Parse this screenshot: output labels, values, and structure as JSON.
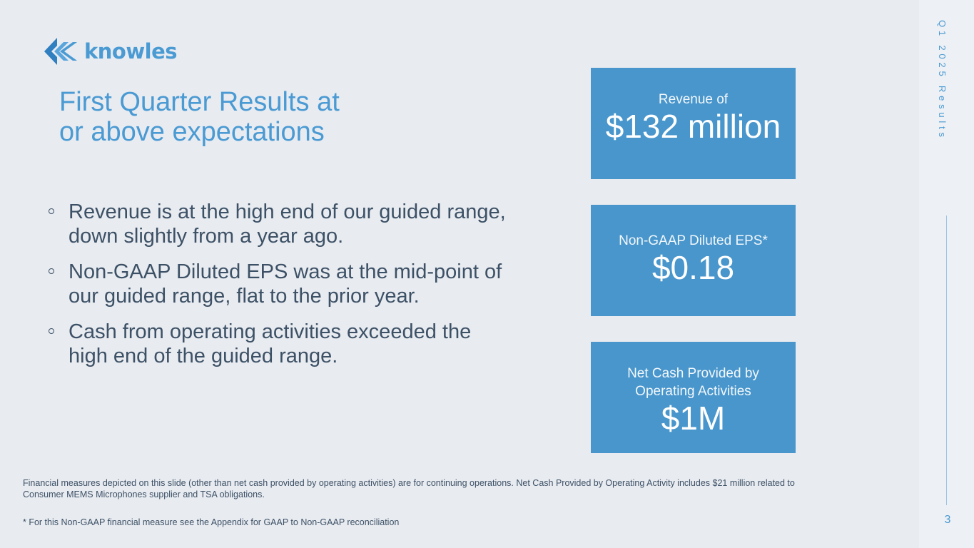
{
  "brand": {
    "name": "knowles",
    "color": "#4a9ad3"
  },
  "title": {
    "line1": "First Quarter Results at",
    "line2": "or above expectations"
  },
  "bullets": [
    {
      "line1": "Revenue is at the high end of our guided range,",
      "line2": "down slightly from a year ago."
    },
    {
      "line1": "Non-GAAP Diluted EPS was at the mid-point of",
      "line2": "our guided range, flat to the prior year."
    },
    {
      "line1": "Cash from operating activities exceeded the",
      "line2": "high end of the guided range."
    }
  ],
  "kpis": {
    "revenue": {
      "label": "Revenue of",
      "value": "$132 million"
    },
    "eps": {
      "label": "Non-GAAP Diluted EPS*",
      "value": "$0.18"
    },
    "cash": {
      "label_line1": "Net Cash Provided by",
      "label_line2": "Operating Activities",
      "value": "$1M"
    },
    "box_color": "#4896cc"
  },
  "footnotes": {
    "note1_line1": "Financial measures depicted on this slide (other than net cash provided by operating activities) are for continuing operations.  Net Cash Provided by Operating Activity includes $21 million related to",
    "note1_line2": "Consumer MEMS Microphones supplier and TSA obligations.",
    "note2": "* For this Non-GAAP financial measure see the Appendix for GAAP to Non-GAAP reconciliation"
  },
  "sidebar": {
    "vertical_label": "Q1 2025 Results",
    "page_number": "3"
  },
  "icons": {
    "logo": "knowles-chevron-logo-icon"
  }
}
